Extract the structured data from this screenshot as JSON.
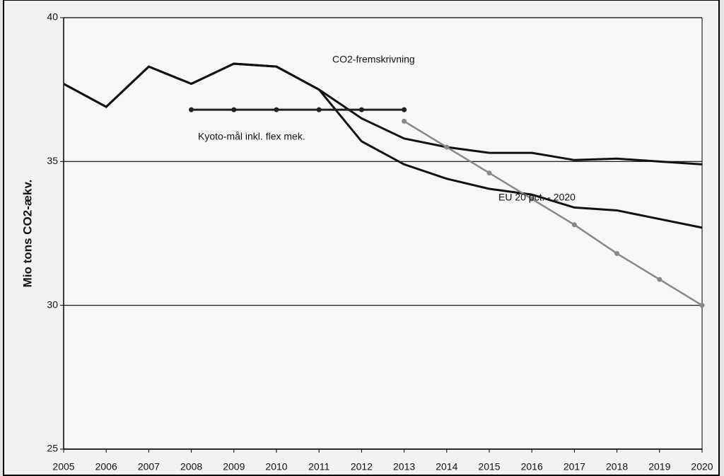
{
  "chart_data": {
    "type": "line",
    "y_label": "Mio tons CO2-ækv.",
    "categories": [
      "2005",
      "2006",
      "2007",
      "2008",
      "2009",
      "2010",
      "2011",
      "2012",
      "2013",
      "2014",
      "2015",
      "2016",
      "2017",
      "2018",
      "2019",
      "2020"
    ],
    "series": [
      {
        "name": "CO2-fremskrivning",
        "color": "#111111",
        "values": [
          37.7,
          36.9,
          38.3,
          37.7,
          38.4,
          38.3,
          37.5,
          36.5,
          35.8,
          35.5,
          35.3,
          35.3,
          35.05,
          35.1,
          35.0,
          34.9
        ]
      },
      {
        "color": "#111111",
        "values": [
          37.7,
          36.9,
          38.3,
          37.7,
          38.4,
          38.3,
          37.5,
          35.7,
          34.9,
          34.4,
          34.05,
          33.85,
          33.4,
          33.3,
          33.0,
          32.7
        ]
      },
      {
        "name": "Kyoto-mål inkl. flex mek.",
        "color": "#222222",
        "marker": true,
        "values": [
          null,
          null,
          null,
          36.8,
          36.8,
          36.8,
          36.8,
          36.8,
          36.8,
          null,
          null,
          null,
          null,
          null,
          null,
          null
        ]
      },
      {
        "name": "EU 20 pct. - 2020",
        "color": "#888888",
        "marker": true,
        "values": [
          null,
          null,
          null,
          null,
          null,
          null,
          null,
          null,
          36.4,
          35.5,
          34.6,
          33.7,
          32.8,
          31.8,
          30.9,
          30.0
        ]
      }
    ],
    "ylim": [
      25,
      40
    ],
    "yticks": [
      25,
      30,
      35,
      40
    ],
    "grid": true
  }
}
